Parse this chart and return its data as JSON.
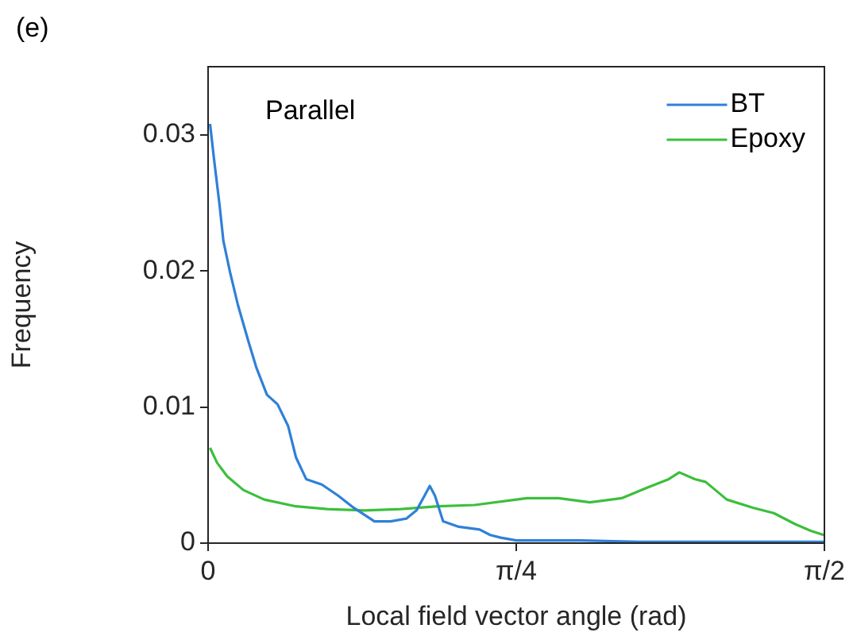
{
  "chart_data": {
    "type": "line",
    "xlabel": "Local field vector angle (rad)",
    "ylabel": "Frequency",
    "annotations": [
      "(e)",
      "Parallel"
    ],
    "xlim": [
      0,
      1.5708
    ],
    "xticks": [
      0,
      {
        "value": 0.7854,
        "label": "π/4"
      },
      {
        "value": 1.5708,
        "label": "π/2"
      }
    ],
    "ylim": [
      0,
      0.035
    ],
    "yticks": [
      0,
      0.01,
      0.02,
      0.03
    ],
    "grid": false,
    "legend": "top right",
    "marker": "none",
    "line_style": "solid",
    "series": [
      {
        "name": "BT",
        "color": "#2f80d8",
        "x": [
          0.005,
          0.016,
          0.029,
          0.039,
          0.056,
          0.076,
          0.103,
          0.123,
          0.15,
          0.177,
          0.204,
          0.224,
          0.25,
          0.29,
          0.331,
          0.371,
          0.424,
          0.465,
          0.505,
          0.531,
          0.552,
          0.565,
          0.578,
          0.599,
          0.639,
          0.692,
          0.719,
          0.746,
          0.786,
          0.85,
          0.95,
          1.1,
          1.3,
          1.5,
          1.569
        ],
        "values": [
          0.0308,
          0.028,
          0.0249,
          0.0222,
          0.0199,
          0.0175,
          0.0148,
          0.0129,
          0.0109,
          0.0102,
          0.0086,
          0.0063,
          0.0047,
          0.0043,
          0.0035,
          0.0026,
          0.0016,
          0.0016,
          0.0018,
          0.0024,
          0.0035,
          0.0042,
          0.0035,
          0.0016,
          0.0012,
          0.001,
          0.0006,
          0.0004,
          0.0002,
          0.0002,
          0.0002,
          0.0001,
          0.0001,
          0.0001,
          0.0001
        ]
      },
      {
        "name": "Epoxy",
        "color": "#3cbf3c",
        "x": [
          0.005,
          0.023,
          0.049,
          0.09,
          0.143,
          0.224,
          0.304,
          0.398,
          0.491,
          0.585,
          0.679,
          0.786,
          0.813,
          0.893,
          0.973,
          1.054,
          1.121,
          1.174,
          1.201,
          1.241,
          1.268,
          1.322,
          1.389,
          1.442,
          1.496,
          1.536,
          1.569
        ],
        "values": [
          0.007,
          0.0059,
          0.0049,
          0.0039,
          0.0032,
          0.0027,
          0.0025,
          0.0024,
          0.0025,
          0.0027,
          0.0028,
          0.0032,
          0.0033,
          0.0033,
          0.003,
          0.0033,
          0.0041,
          0.0047,
          0.0052,
          0.0047,
          0.0045,
          0.0032,
          0.0026,
          0.0022,
          0.0014,
          0.0009,
          0.0006
        ]
      }
    ]
  }
}
